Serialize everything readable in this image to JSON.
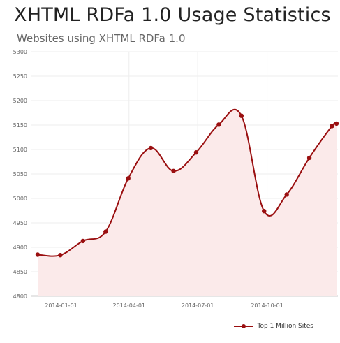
{
  "title": "XHTML RDFa 1.0 Usage Statistics",
  "subtitle": "Websites using XHTML RDFa 1.0",
  "colors": {
    "series": "#9a0f10",
    "area": "#fbeaea",
    "grid": "#eeeeee"
  },
  "chart_data": {
    "type": "area",
    "title": "XHTML RDFa 1.0 Usage Statistics",
    "subtitle": "Websites using XHTML RDFa 1.0",
    "xlabel": "",
    "ylabel": "",
    "ylim": [
      4800,
      5300
    ],
    "y_ticks": [
      "5300",
      "5250",
      "5200",
      "5150",
      "5100",
      "5050",
      "5000",
      "4950",
      "4900",
      "4850",
      "4800"
    ],
    "x_ticks": [
      "2014-01-01",
      "2014-04-01",
      "2014-07-01",
      "2014-10-01"
    ],
    "grid": true,
    "legend": "bottom-right",
    "series": [
      {
        "name": "Top 1 Million Sites",
        "x": [
          "2013-12-01",
          "2013-12-31",
          "2014-01-30",
          "2014-03-01",
          "2014-03-31",
          "2014-04-30",
          "2014-05-30",
          "2014-06-29",
          "2014-07-29",
          "2014-08-28",
          "2014-09-27",
          "2014-10-27",
          "2014-11-26",
          "2014-12-26",
          "2015-01-01"
        ],
        "values": [
          4885,
          4884,
          4913,
          4932,
          5041,
          5103,
          5056,
          5094,
          5151,
          5169,
          4974,
          5008,
          5083,
          5148,
          5153
        ]
      }
    ]
  }
}
